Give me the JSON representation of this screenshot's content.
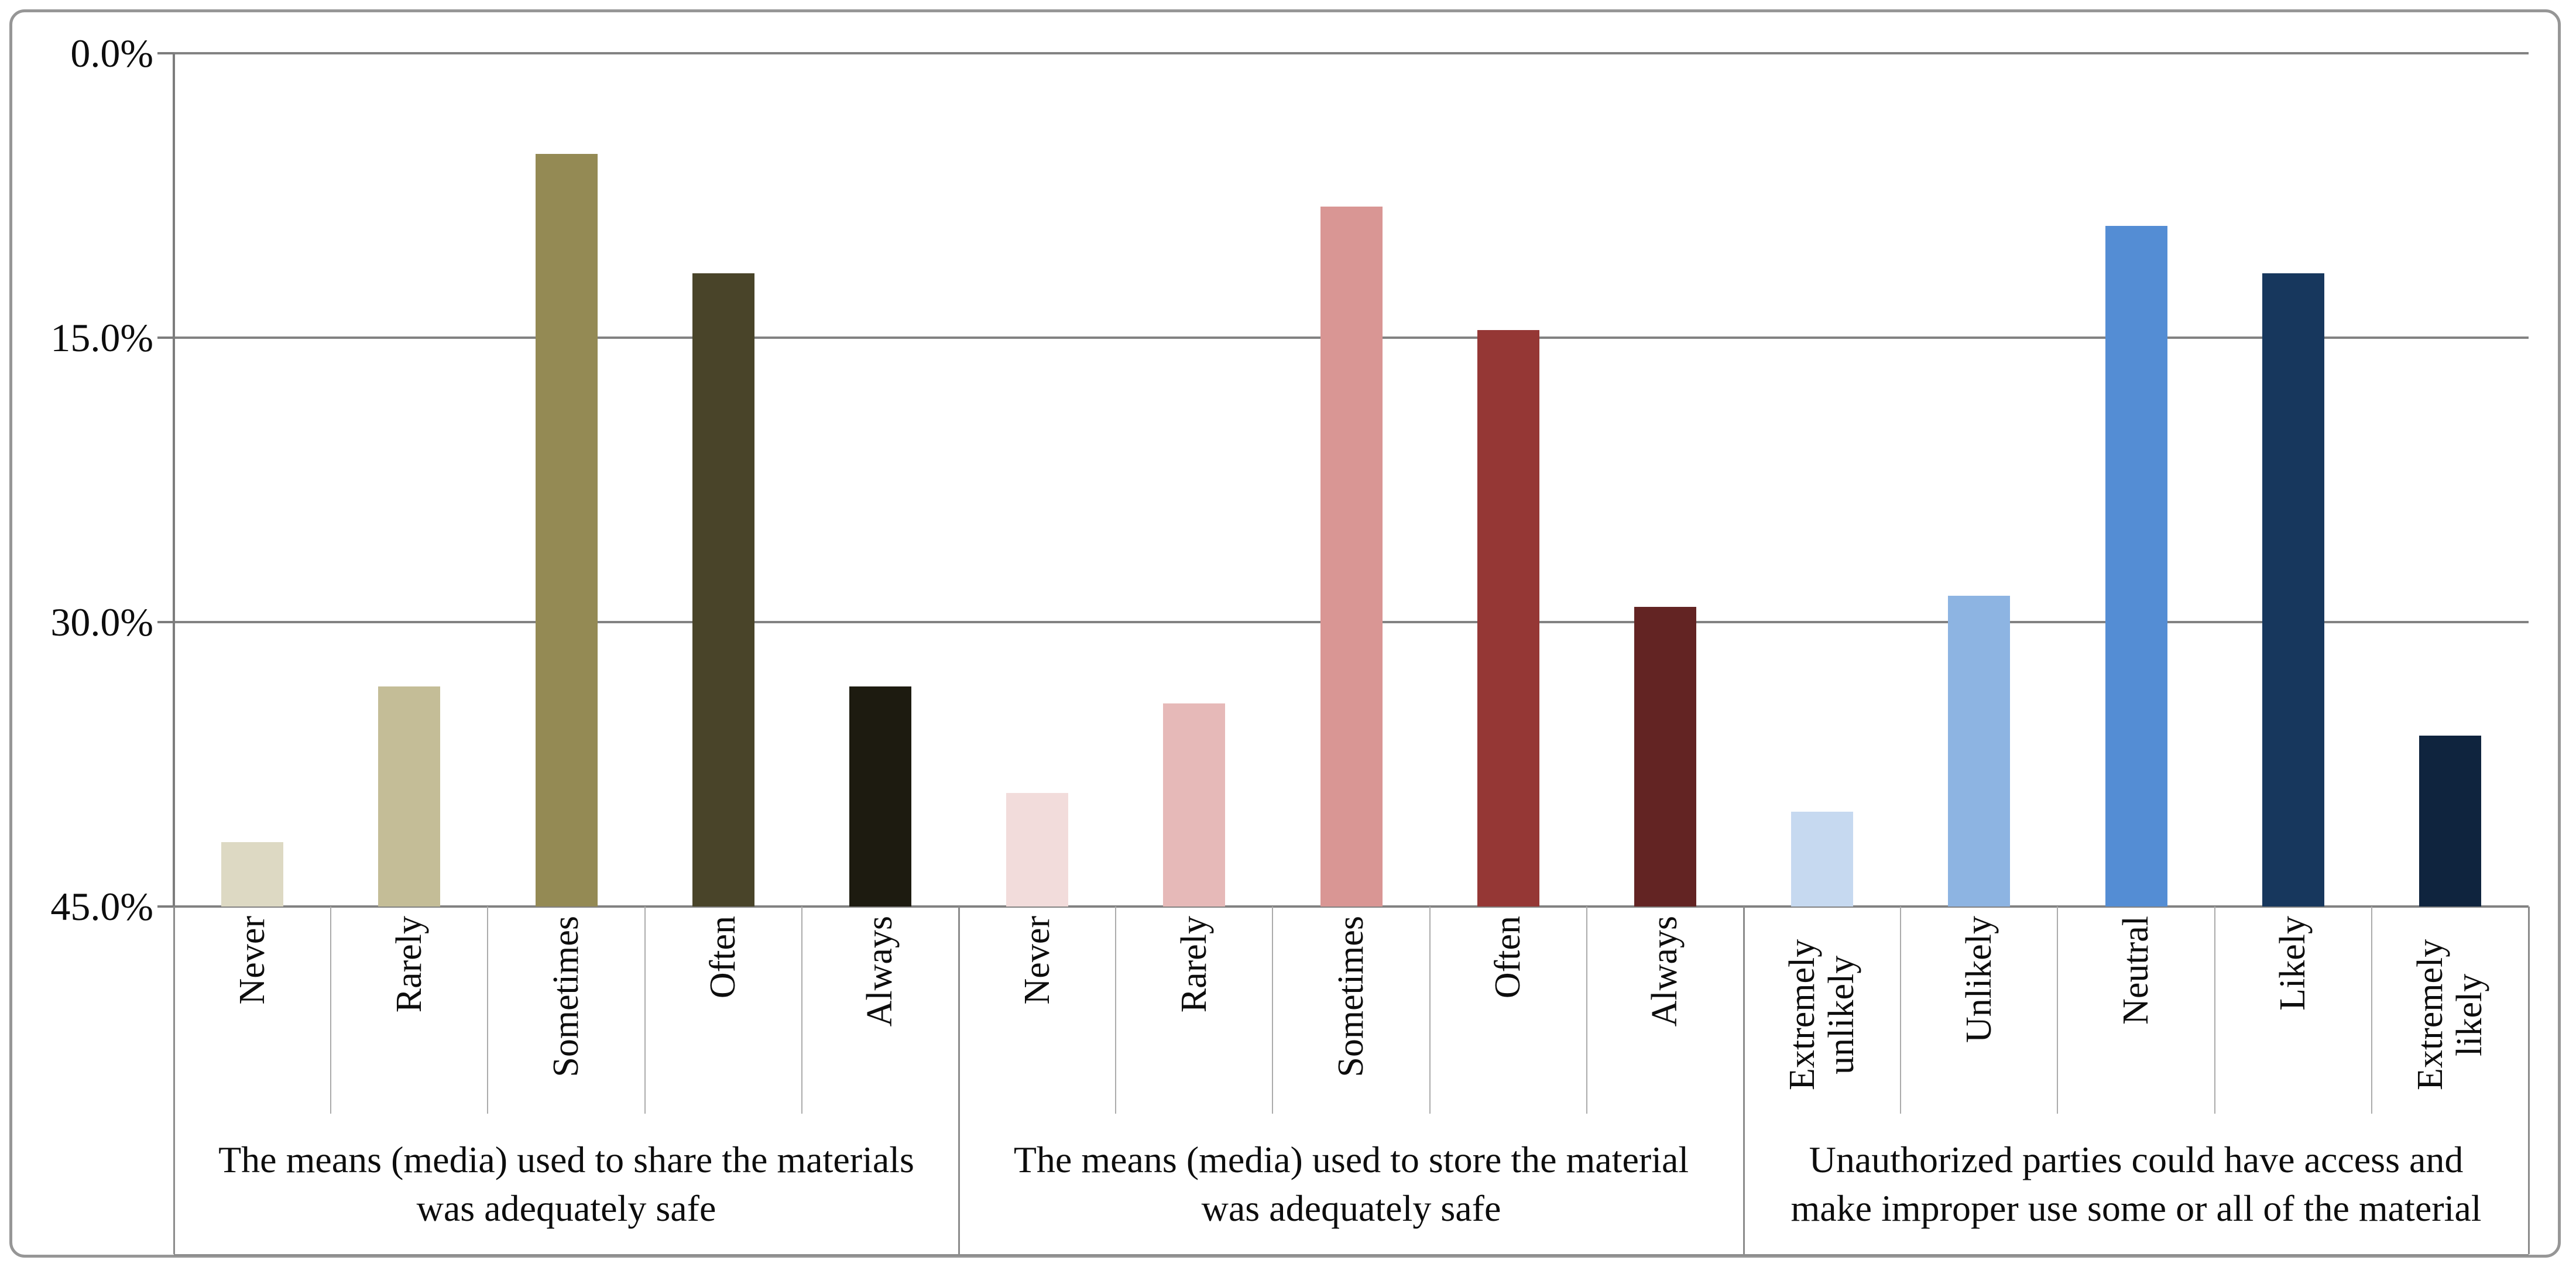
{
  "chart_data": {
    "type": "bar",
    "title": "",
    "ylabel": "",
    "xlabel": "",
    "ylim": [
      0,
      45
    ],
    "grid": true,
    "legend": "none",
    "y_axis": {
      "tick_labels_top_to_bottom": [
        "45.0%",
        "30.0%",
        "15.0%",
        "0.0%"
      ],
      "tick_values": [
        45,
        30,
        15,
        0
      ],
      "unit": "percent"
    },
    "groups": [
      {
        "label": "The means (media) used to share the materials was adequately safe",
        "label_lines": [
          "The means (media) used to share the materials",
          "was adequately safe"
        ],
        "categories": [
          "Never",
          "Rarely",
          "Sometimes",
          "Often",
          "Always"
        ],
        "values": [
          3.4,
          11.6,
          39.7,
          33.4,
          11.6
        ],
        "colors": [
          "#DDD9C3",
          "#C4BD97",
          "#948A54",
          "#494429",
          "#1D1B10"
        ]
      },
      {
        "label": "The means (media) used to store the material was adequately safe",
        "label_lines": [
          "The means (media) used to store the material",
          "was adequately safe"
        ],
        "categories": [
          "Never",
          "Rarely",
          "Sometimes",
          "Often",
          "Always"
        ],
        "values": [
          6.0,
          10.7,
          36.9,
          30.4,
          15.8
        ],
        "colors": [
          "#F2DCDB",
          "#E6B9B8",
          "#D99694",
          "#953735",
          "#632423"
        ]
      },
      {
        "label": "Unauthorized parties could have access and make improper use some or all of the material",
        "label_lines": [
          "Unauthorized parties could have access and",
          "make improper use some or all of the material"
        ],
        "categories": [
          "Extremely unlikely",
          "Unlikely",
          "Neutral",
          "Likely",
          "Extremely likely"
        ],
        "values": [
          5.0,
          16.4,
          35.9,
          33.4,
          9.0
        ],
        "colors": [
          "#C6D9F0",
          "#8DB4E2",
          "#548DD4",
          "#17375D",
          "#0F243E"
        ]
      }
    ]
  },
  "colors": {
    "background": "#FFFFFF",
    "gridline": "#828282",
    "axis": "#7C7C7C",
    "chart_border": "#969696",
    "cell_divider": "#ABABAB",
    "group_divider": "#8C8C8C",
    "text": "#0D0D0D"
  }
}
